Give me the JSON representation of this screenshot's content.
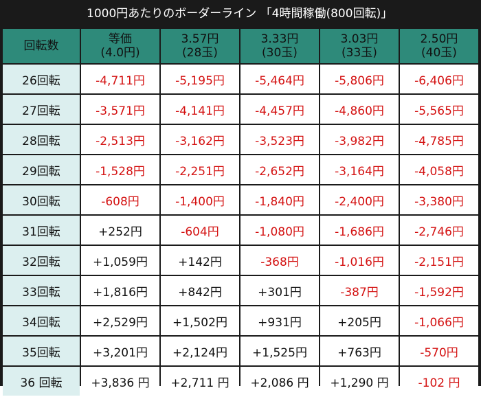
{
  "title": "1000円あたりのボーダーライン 「4時間稼働(800回転)」",
  "header": {
    "first": "回転数",
    "cols": [
      {
        "line1": "等価",
        "line2": "(4.0円)"
      },
      {
        "line1": "3.57円",
        "line2": "(28玉)"
      },
      {
        "line1": "3.33円",
        "line2": "(30玉)"
      },
      {
        "line1": "3.03円",
        "line2": "(33玉)"
      },
      {
        "line1": "2.50円",
        "line2": "(40玉)"
      }
    ]
  },
  "rows": [
    {
      "label": "26回転",
      "values": [
        "-4,711円",
        "-5,195円",
        "-5,464円",
        "-5,806円",
        "-6,406円"
      ]
    },
    {
      "label": "27回転",
      "values": [
        "-3,571円",
        "-4,141円",
        "-4,457円",
        "-4,860円",
        "-5,565円"
      ]
    },
    {
      "label": "28回転",
      "values": [
        "-2,513円",
        "-3,162円",
        "-3,523円",
        "-3,982円",
        "-4,785円"
      ]
    },
    {
      "label": "29回転",
      "values": [
        "-1,528円",
        "-2,251円",
        "-2,652円",
        "-3,164円",
        "-4,058円"
      ]
    },
    {
      "label": "30回転",
      "values": [
        "-608円",
        "-1,400円",
        "-1,840円",
        "-2,400円",
        "-3,380円"
      ]
    },
    {
      "label": "31回転",
      "values": [
        "+252円",
        "-604円",
        "-1,080円",
        "-1,686円",
        "-2,746円"
      ]
    },
    {
      "label": "32回転",
      "values": [
        "+1,059円",
        "+142円",
        "-368円",
        "-1,016円",
        "-2,151円"
      ]
    },
    {
      "label": "33回転",
      "values": [
        "+1,816円",
        "+842円",
        "+301円",
        "-387円",
        "-1,592円"
      ]
    },
    {
      "label": "34回転",
      "values": [
        "+2,529円",
        "+1,502円",
        "+931円",
        "+205円",
        "-1,066円"
      ]
    },
    {
      "label": "35回転",
      "values": [
        "+3,201円",
        "+2,124円",
        "+1,525円",
        "+763円",
        "-570円"
      ]
    },
    {
      "label": "36 回転",
      "values": [
        "+3,836 円",
        "+2,711 円",
        "+2,086 円",
        "+1,290 円",
        "-102 円"
      ]
    }
  ],
  "colors": {
    "header_bg": "#2e8a7a",
    "rowhead_bg": "#dcefef",
    "negative": "#d41212",
    "positive": "#111111",
    "border": "#1a1a1a"
  }
}
